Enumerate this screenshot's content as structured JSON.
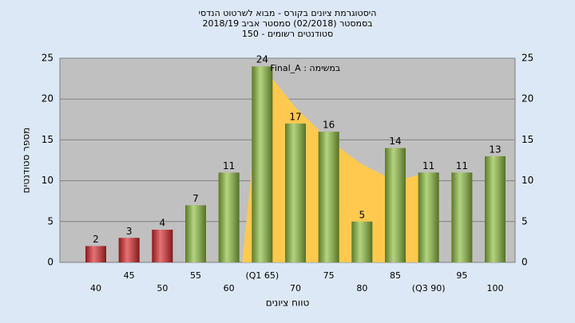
{
  "chart_data": {
    "type": "bar",
    "title": [
      "היסטוגרמת ציונים בקורס - מבוא לשרטוט הנדסי",
      "בסמסטר  (02/2018)  סמסטר אביב 2018/19",
      "150 - סטודנטים רשומים"
    ],
    "annotation": "Final_A : במשימה",
    "x_label": "טווח ציונים",
    "y_label": "מספר סטודנטים",
    "categories": [
      "40",
      "45",
      "50",
      "55",
      "60",
      "(Q1 65)",
      "70",
      "75",
      "80",
      "85",
      "(Q3 90)",
      "95",
      "100"
    ],
    "values": [
      2,
      3,
      4,
      7,
      11,
      24,
      17,
      16,
      5,
      14,
      11,
      11,
      13
    ],
    "colors": [
      "#d8262a",
      "#d8262a",
      "#d8262a",
      "#8cbc3c",
      "#8cbc3c",
      "#8cbc3c",
      "#8cbc3c",
      "#8cbc3c",
      "#8cbc3c",
      "#8cbc3c",
      "#8cbc3c",
      "#8cbc3c",
      "#8cbc3c"
    ],
    "area": {
      "color": "#ffc94f",
      "values": [
        null,
        null,
        null,
        null,
        null,
        24,
        19,
        15,
        12,
        10,
        11,
        null,
        null
      ]
    },
    "ylim": [
      0,
      25
    ],
    "yticks": [
      0,
      5,
      10,
      15,
      20,
      25
    ],
    "grid": true
  }
}
